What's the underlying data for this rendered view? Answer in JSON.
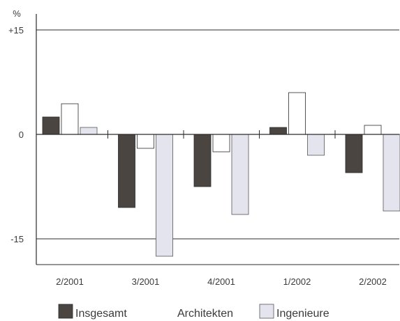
{
  "chart_data": {
    "type": "bar",
    "y_unit_label": "%",
    "categories": [
      "2/2001",
      "3/2001",
      "4/2001",
      "1/2002",
      "2/2002"
    ],
    "series": [
      {
        "name": "Insgesamt",
        "values": [
          2.5,
          -10.5,
          -7.5,
          1.0,
          -5.5
        ],
        "color": "#4a4541",
        "outline": "#2b2b2b"
      },
      {
        "name": "Architekten",
        "values": [
          4.4,
          -2.0,
          -2.5,
          6.0,
          1.3
        ],
        "color": "#ffffff",
        "outline": "#2b2b2b"
      },
      {
        "name": "Ingenieure",
        "values": [
          1.0,
          -17.5,
          -11.5,
          -3.0,
          -11.0
        ],
        "color": "#e4e4ee",
        "outline": "#555555"
      }
    ],
    "y_ticks": [
      {
        "value": 15,
        "label": "+15"
      },
      {
        "value": 0,
        "label": "0"
      },
      {
        "value": -15,
        "label": "-15"
      }
    ],
    "ylim": [
      -18.5,
      16.5
    ],
    "gridlines_at": [
      15,
      -15
    ],
    "legend_position": "bottom"
  }
}
